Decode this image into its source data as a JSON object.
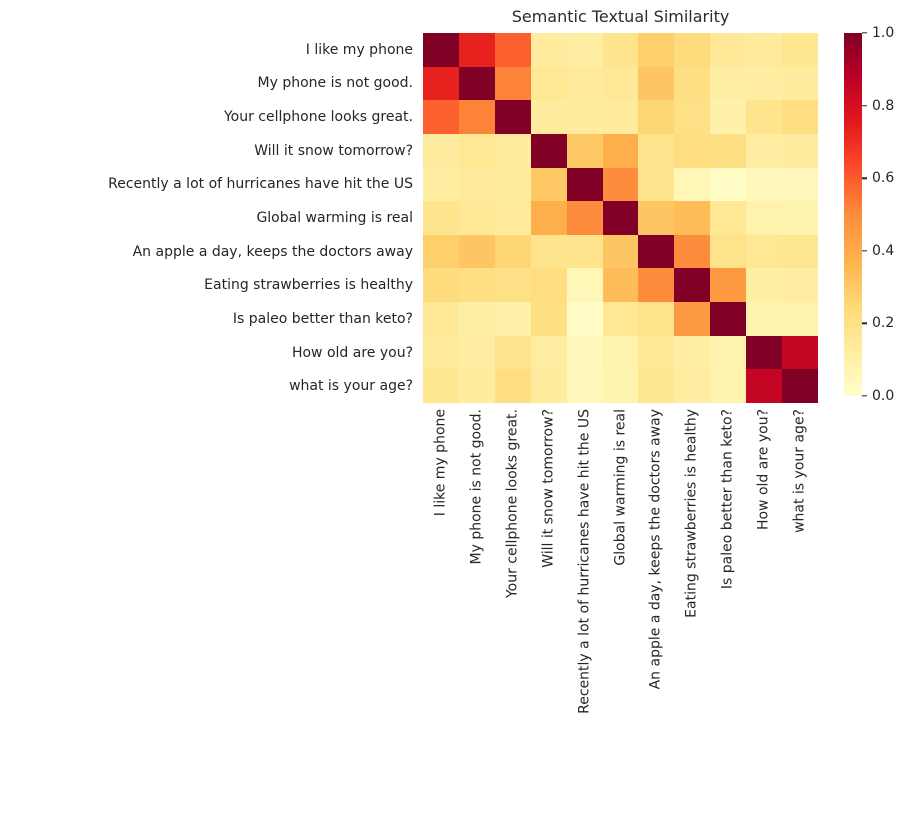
{
  "chart_data": {
    "type": "heatmap",
    "title": "Semantic Textual Similarity",
    "colormap": "YlOrRd",
    "colormap_anchors": [
      "#ffffcc",
      "#ffeda0",
      "#fed976",
      "#feb24c",
      "#fd8d3c",
      "#fc4e2a",
      "#e31a1c",
      "#bd0026",
      "#800026"
    ],
    "value_range": [
      0.0,
      1.0
    ],
    "labels": [
      "I like my phone",
      "My phone is not good.",
      "Your cellphone looks great.",
      "Will it snow tomorrow?",
      "Recently a lot of hurricanes have hit the US",
      "Global warming is real",
      "An apple a day, keeps the doctors away",
      "Eating strawberries is healthy",
      "Is paleo better than keto?",
      "How old are you?",
      "what is your age?"
    ],
    "matrix": [
      [
        1.0,
        0.73,
        0.59,
        0.13,
        0.12,
        0.18,
        0.28,
        0.23,
        0.15,
        0.14,
        0.17
      ],
      [
        0.73,
        1.0,
        0.52,
        0.16,
        0.14,
        0.15,
        0.31,
        0.21,
        0.11,
        0.12,
        0.13
      ],
      [
        0.59,
        0.52,
        1.0,
        0.13,
        0.13,
        0.14,
        0.26,
        0.2,
        0.1,
        0.18,
        0.22
      ],
      [
        0.13,
        0.16,
        0.13,
        1.0,
        0.3,
        0.39,
        0.18,
        0.22,
        0.21,
        0.12,
        0.13
      ],
      [
        0.12,
        0.14,
        0.13,
        0.3,
        1.0,
        0.5,
        0.18,
        0.06,
        0.02,
        0.05,
        0.05
      ],
      [
        0.18,
        0.15,
        0.14,
        0.39,
        0.5,
        1.0,
        0.31,
        0.34,
        0.16,
        0.09,
        0.08
      ],
      [
        0.28,
        0.31,
        0.26,
        0.18,
        0.18,
        0.31,
        1.0,
        0.5,
        0.19,
        0.16,
        0.17
      ],
      [
        0.23,
        0.21,
        0.2,
        0.22,
        0.06,
        0.34,
        0.5,
        1.0,
        0.46,
        0.11,
        0.12
      ],
      [
        0.15,
        0.11,
        0.1,
        0.21,
        0.02,
        0.16,
        0.19,
        0.46,
        1.0,
        0.09,
        0.09
      ],
      [
        0.14,
        0.12,
        0.18,
        0.12,
        0.05,
        0.09,
        0.16,
        0.11,
        0.09,
        1.0,
        0.85
      ],
      [
        0.17,
        0.13,
        0.22,
        0.13,
        0.05,
        0.08,
        0.17,
        0.12,
        0.09,
        0.85,
        1.0
      ]
    ],
    "colorbar": {
      "tick_labels": [
        "1.0",
        "0.8",
        "0.6",
        "0.4",
        "0.2",
        "0.0"
      ],
      "tick_values": [
        1.0,
        0.8,
        0.6,
        0.4,
        0.2,
        0.0
      ],
      "position": "right"
    },
    "grid": false,
    "legend": false
  }
}
